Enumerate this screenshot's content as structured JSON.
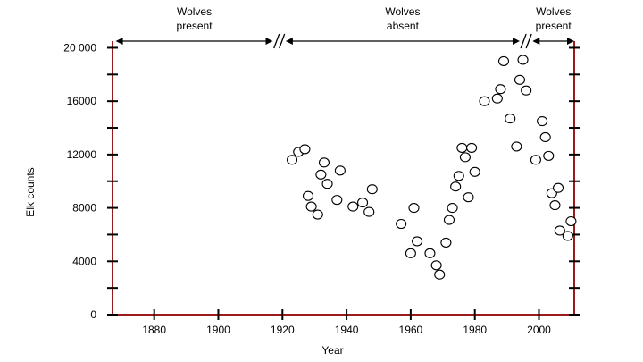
{
  "chart_data": {
    "type": "scatter",
    "title": "",
    "xlabel": "Year",
    "ylabel": "Elk counts",
    "xlim": [
      1867,
      2011
    ],
    "ylim": [
      0,
      20500
    ],
    "x_ticks": [
      1880,
      1900,
      1920,
      1940,
      1960,
      1980,
      2000
    ],
    "y_ticks": [
      0,
      4000,
      8000,
      12000,
      16000,
      20000
    ],
    "y_tick_labels": [
      "0",
      "4000",
      "8000",
      "12000",
      "16000",
      "20 000"
    ],
    "grid": false,
    "axis_color": "#9b1b1b",
    "periods": [
      {
        "line1": "Wolves",
        "line2": "present",
        "start": 1868,
        "end": 1917
      },
      {
        "line1": "Wolves",
        "line2": "absent",
        "start": 1921,
        "end": 1994
      },
      {
        "line1": "Wolves",
        "line2": "present",
        "start": 1998,
        "end": 2011
      }
    ],
    "points": [
      {
        "x": 1923,
        "y": 11600
      },
      {
        "x": 1925,
        "y": 12200
      },
      {
        "x": 1927,
        "y": 12400
      },
      {
        "x": 1928,
        "y": 8900
      },
      {
        "x": 1929,
        "y": 8100
      },
      {
        "x": 1931,
        "y": 7500
      },
      {
        "x": 1932,
        "y": 10500
      },
      {
        "x": 1933,
        "y": 11400
      },
      {
        "x": 1934,
        "y": 9800
      },
      {
        "x": 1937,
        "y": 8600
      },
      {
        "x": 1938,
        "y": 10800
      },
      {
        "x": 1942,
        "y": 8100
      },
      {
        "x": 1945,
        "y": 8400
      },
      {
        "x": 1947,
        "y": 7700
      },
      {
        "x": 1948,
        "y": 9400
      },
      {
        "x": 1957,
        "y": 6800
      },
      {
        "x": 1960,
        "y": 4600
      },
      {
        "x": 1961,
        "y": 8000
      },
      {
        "x": 1962,
        "y": 5500
      },
      {
        "x": 1966,
        "y": 4600
      },
      {
        "x": 1968,
        "y": 3700
      },
      {
        "x": 1969,
        "y": 3000
      },
      {
        "x": 1971,
        "y": 5400
      },
      {
        "x": 1972,
        "y": 7100
      },
      {
        "x": 1973,
        "y": 8000
      },
      {
        "x": 1974,
        "y": 9600
      },
      {
        "x": 1975,
        "y": 10400
      },
      {
        "x": 1976,
        "y": 12500
      },
      {
        "x": 1977,
        "y": 11800
      },
      {
        "x": 1978,
        "y": 8800
      },
      {
        "x": 1979,
        "y": 12500
      },
      {
        "x": 1980,
        "y": 10700
      },
      {
        "x": 1983,
        "y": 16000
      },
      {
        "x": 1987,
        "y": 16200
      },
      {
        "x": 1988,
        "y": 16900
      },
      {
        "x": 1989,
        "y": 19000
      },
      {
        "x": 1991,
        "y": 14700
      },
      {
        "x": 1993,
        "y": 12600
      },
      {
        "x": 1994,
        "y": 17600
      },
      {
        "x": 1995,
        "y": 19100
      },
      {
        "x": 1996,
        "y": 16800
      },
      {
        "x": 1999,
        "y": 11600
      },
      {
        "x": 2001,
        "y": 14500
      },
      {
        "x": 2002,
        "y": 13300
      },
      {
        "x": 2003,
        "y": 11900
      },
      {
        "x": 2004,
        "y": 9100
      },
      {
        "x": 2005,
        "y": 8200
      },
      {
        "x": 2006,
        "y": 9500
      },
      {
        "x": 2006.5,
        "y": 6300
      },
      {
        "x": 2009,
        "y": 5900
      },
      {
        "x": 2010,
        "y": 7000
      }
    ]
  }
}
